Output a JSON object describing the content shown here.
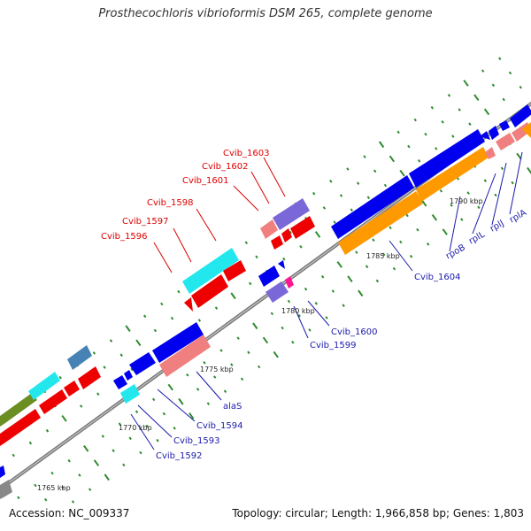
{
  "title": "Prosthecochloris vibrioformis DSM 265, complete genome",
  "accession": "Accession: NC_009337",
  "summary": "Topology: circular; Length: 1,966,858 bp; Genes: 1,803",
  "colors": {
    "blue": "#0000ee",
    "red": "#ee0000",
    "cyan": "#22e8ee",
    "purple": "#7b68d8",
    "pink": "#f08080",
    "orange": "#ff9900",
    "olive": "#6b8e23",
    "steel": "#4682b4",
    "gray": "#888888",
    "magenta": "#ff1493",
    "backbone": "#777777",
    "tick": "#2e8b2e",
    "label_red": "#dd0000",
    "label_blue": "#1a1aaa"
  },
  "kbp_ticks": [
    "1765 kbp",
    "1770 kbp",
    "1775 kbp",
    "1780 kbp",
    "1785 kbp",
    "1790 kbp"
  ],
  "red_labels": [
    "Cvib_1596",
    "Cvib_1597",
    "Cvib_1598",
    "Cvib_1601",
    "Cvib_1602",
    "Cvib_1603"
  ],
  "blue_labels": [
    "Cvib_1592",
    "Cvib_1593",
    "Cvib_1594",
    "alaS",
    "Cvib_1599",
    "Cvib_1600",
    "Cvib_1604",
    "rpoB",
    "rplL",
    "rplJ",
    "rplA"
  ]
}
